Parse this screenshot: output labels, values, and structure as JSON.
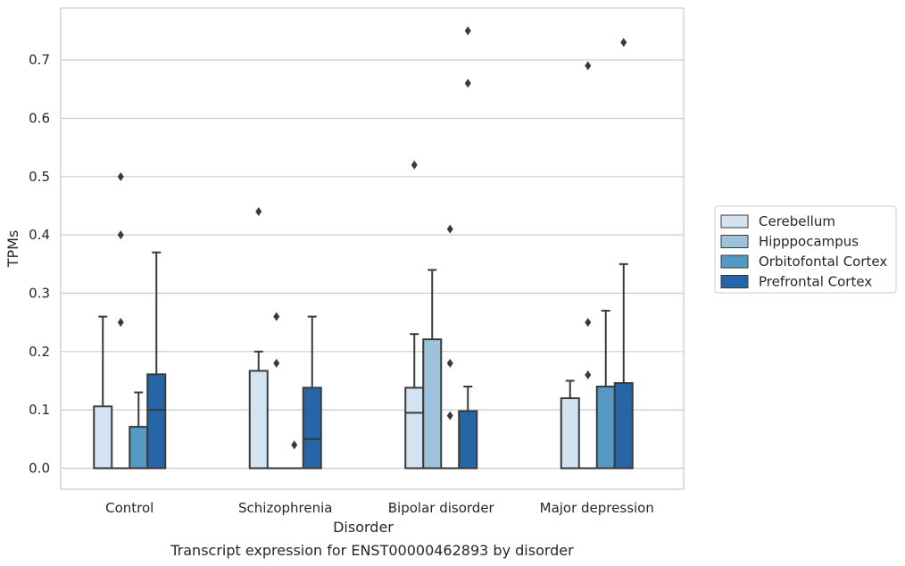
{
  "chart_data": {
    "type": "box",
    "caption": "Transcript expression for ENST00000462893 by disorder",
    "xlabel": "Disorder",
    "ylabel": "TPMs",
    "ylim": [
      -0.036,
      0.789
    ],
    "yticks": [
      "0.0",
      "0.1",
      "0.2",
      "0.3",
      "0.4",
      "0.5",
      "0.6",
      "0.7"
    ],
    "grid": "horizontal",
    "legend_position": "right",
    "categories": [
      "Control",
      "Schizophrenia",
      "Bipolar disorder",
      "Major depression"
    ],
    "series": [
      {
        "name": "Cerebellum",
        "color": "#d4e3f1",
        "boxes": [
          {
            "whislo": 0.0,
            "q1": 0.0,
            "med": 0.0,
            "q3": 0.106,
            "whishi": 0.26,
            "fliers": []
          },
          {
            "whislo": 0.0,
            "q1": 0.0,
            "med": 0.0,
            "q3": 0.167,
            "whishi": 0.2,
            "fliers": [
              0.44
            ]
          },
          {
            "whislo": 0.0,
            "q1": 0.0,
            "med": 0.095,
            "q3": 0.138,
            "whishi": 0.23,
            "fliers": [
              0.52
            ]
          },
          {
            "whislo": 0.0,
            "q1": 0.0,
            "med": 0.0,
            "q3": 0.12,
            "whishi": 0.15,
            "fliers": []
          }
        ]
      },
      {
        "name": "Hipppocampus",
        "color": "#9cc3db",
        "boxes": [
          {
            "whislo": 0.0,
            "q1": 0.0,
            "med": 0.0,
            "q3": 0.0,
            "whishi": 0.0,
            "fliers": [
              0.25,
              0.4,
              0.5
            ]
          },
          {
            "whislo": 0.0,
            "q1": 0.0,
            "med": 0.0,
            "q3": 0.0,
            "whishi": 0.0,
            "fliers": [
              0.18,
              0.26
            ]
          },
          {
            "whislo": 0.0,
            "q1": 0.0,
            "med": 0.0,
            "q3": 0.221,
            "whishi": 0.34,
            "fliers": []
          },
          {
            "whislo": 0.0,
            "q1": 0.0,
            "med": 0.0,
            "q3": 0.0,
            "whishi": 0.0,
            "fliers": [
              0.16,
              0.25,
              0.69
            ]
          }
        ]
      },
      {
        "name": "Orbitofontal Cortex",
        "color": "#5698c4",
        "boxes": [
          {
            "whislo": 0.0,
            "q1": 0.0,
            "med": 0.0,
            "q3": 0.071,
            "whishi": 0.13,
            "fliers": []
          },
          {
            "whislo": 0.0,
            "q1": 0.0,
            "med": 0.0,
            "q3": 0.0,
            "whishi": 0.0,
            "fliers": [
              0.04
            ]
          },
          {
            "whislo": 0.0,
            "q1": 0.0,
            "med": 0.0,
            "q3": 0.0,
            "whishi": 0.0,
            "fliers": [
              0.09,
              0.18,
              0.41
            ]
          },
          {
            "whislo": 0.0,
            "q1": 0.0,
            "med": 0.0,
            "q3": 0.14,
            "whishi": 0.27,
            "fliers": []
          }
        ]
      },
      {
        "name": "Prefrontal Cortex",
        "color": "#2666a8",
        "boxes": [
          {
            "whislo": 0.0,
            "q1": 0.0,
            "med": 0.1,
            "q3": 0.161,
            "whishi": 0.37,
            "fliers": []
          },
          {
            "whislo": 0.0,
            "q1": 0.0,
            "med": 0.05,
            "q3": 0.138,
            "whishi": 0.26,
            "fliers": []
          },
          {
            "whislo": 0.0,
            "q1": 0.0,
            "med": 0.0,
            "q3": 0.098,
            "whishi": 0.14,
            "fliers": [
              0.66,
              0.75
            ]
          },
          {
            "whislo": 0.0,
            "q1": 0.0,
            "med": 0.0,
            "q3": 0.146,
            "whishi": 0.35,
            "fliers": [
              0.73
            ]
          }
        ]
      }
    ]
  }
}
